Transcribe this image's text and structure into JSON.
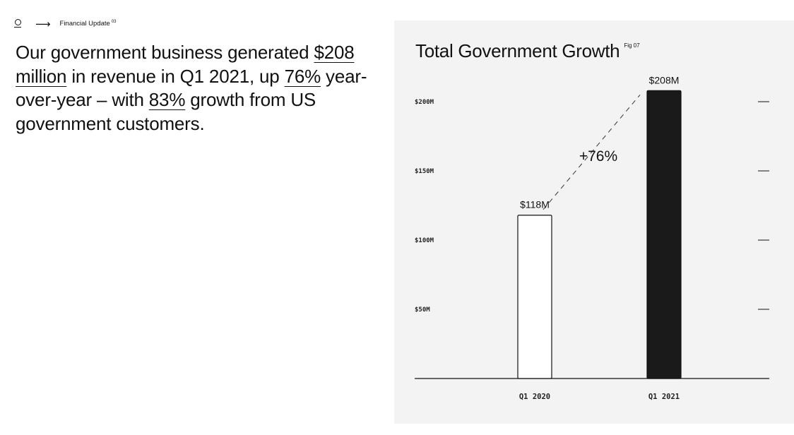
{
  "breadcrumb": {
    "logo_icon": "palantir-logo-icon",
    "arrow_icon": "long-arrow-right-icon",
    "label": "Financial Update",
    "superscript": "03"
  },
  "headline": {
    "part1": "Our government business generated ",
    "highlight1": "$208 million",
    "part2": " in revenue in Q1 2021, up ",
    "highlight2": "76%",
    "part3": " year-over-year – with ",
    "highlight3": "83%",
    "part4": " growth from US government customers."
  },
  "chart_data": {
    "type": "bar",
    "title": "Total Government Growth",
    "fig_label": "Fig 07",
    "categories": [
      "Q1 2020",
      "Q1 2021"
    ],
    "values": [
      118,
      208
    ],
    "value_labels": [
      "$118M",
      "$208M"
    ],
    "bar_styles": [
      "outline",
      "filled"
    ],
    "ylim": [
      0,
      225
    ],
    "yticks": [
      50,
      100,
      150,
      200
    ],
    "ytick_labels": [
      "$50M",
      "$100M",
      "$150M",
      "$200M"
    ],
    "growth_annotation": "+76%",
    "grid": false,
    "colors": {
      "filled_bar": "#1a1a1a",
      "outline_bar": "#ffffff",
      "stroke": "#111111",
      "panel_bg": "#f3f3f3"
    }
  }
}
